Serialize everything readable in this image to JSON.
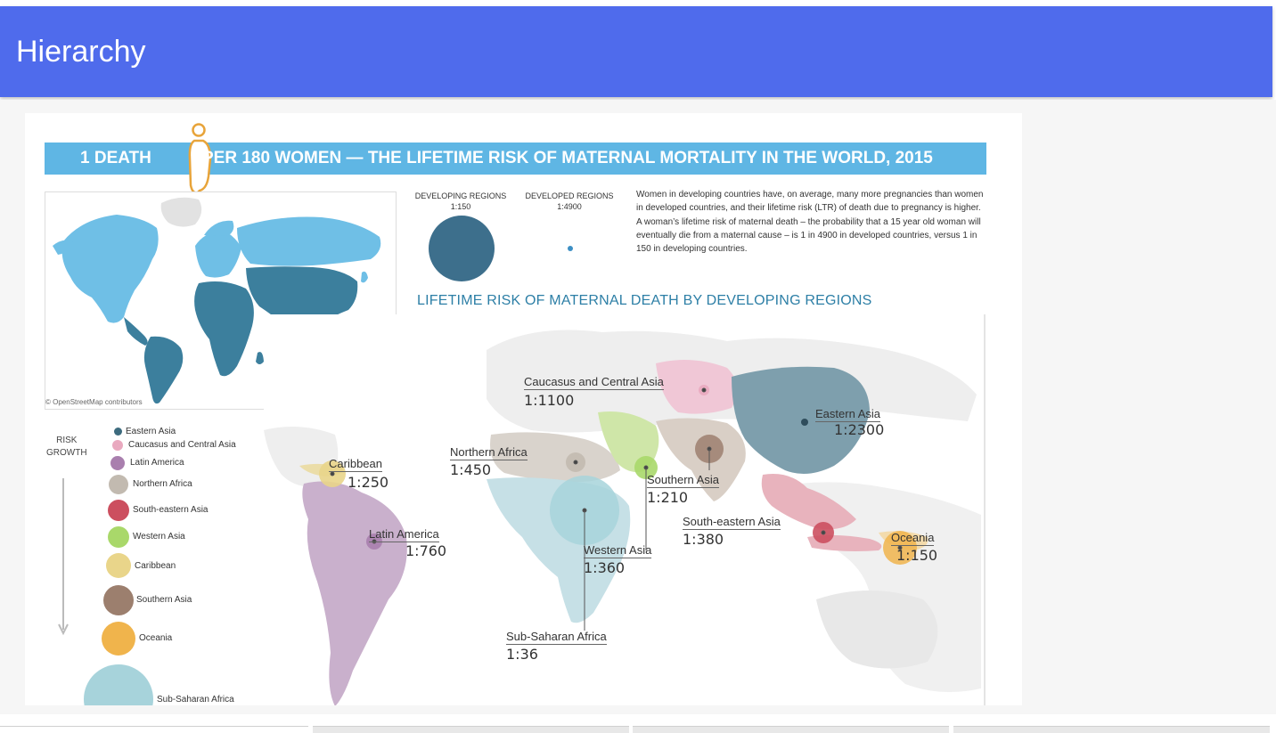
{
  "header": {
    "title": "Hierarchy"
  },
  "infographic": {
    "banner_left": "1 DEATH",
    "banner_right": "PER 180 WOMEN — THE LIFETIME RISK OF MATERNAL MORTALITY IN THE WORLD, 2015",
    "attribution": "© OpenStreetMap contributors",
    "developing_label": "DEVELOPING REGIONS",
    "developing_ratio": "1:150",
    "developed_label": "DEVELOPED REGIONS",
    "developed_ratio": "1:4900",
    "description": "Women in developing countries have, on average, many more pregnancies than women in developed countries, and their lifetime risk (LTR) of death due to pregnancy is higher. A woman’s lifetime risk of maternal death – the probability that a 15 year old woman will eventually die from a maternal cause – is 1 in 4900 in developed countries, versus 1 in 150 in developing countries.",
    "subtitle": "LIFETIME RISK OF MATERNAL DEATH BY DEVELOPING REGIONS",
    "legend_title_line1": "RISK",
    "legend_title_line2": "GROWTH"
  },
  "legend": [
    {
      "name": "Eastern Asia",
      "color": "#3d6b7e"
    },
    {
      "name": "Caucasus and Central Asia",
      "color": "#e9a9bf"
    },
    {
      "name": "Latin America",
      "color": "#a97fae"
    },
    {
      "name": "Northern Africa",
      "color": "#c2bab0"
    },
    {
      "name": "South-eastern Asia",
      "color": "#cc4f5f"
    },
    {
      "name": "Western Asia",
      "color": "#a9d86a"
    },
    {
      "name": "Caribbean",
      "color": "#e9d58a"
    },
    {
      "name": "Southern Asia",
      "color": "#9c7f6e"
    },
    {
      "name": "Oceania",
      "color": "#f0b44c"
    },
    {
      "name": "Sub-Saharan Africa",
      "color": "#a7d3db"
    }
  ],
  "regions": [
    {
      "name": "Caucasus and Central Asia",
      "ratio": "1:1100"
    },
    {
      "name": "Eastern Asia",
      "ratio": "1:2300"
    },
    {
      "name": "Northern Africa",
      "ratio": "1:450"
    },
    {
      "name": "Caribbean",
      "ratio": "1:250"
    },
    {
      "name": "Southern Asia",
      "ratio": "1:210"
    },
    {
      "name": "Latin America",
      "ratio": "1:760"
    },
    {
      "name": "South-eastern Asia",
      "ratio": "1:380"
    },
    {
      "name": "Oceania",
      "ratio": "1:150"
    },
    {
      "name": "Western Asia",
      "ratio": "1:360"
    },
    {
      "name": "Sub-Saharan Africa",
      "ratio": "1:36"
    }
  ]
}
